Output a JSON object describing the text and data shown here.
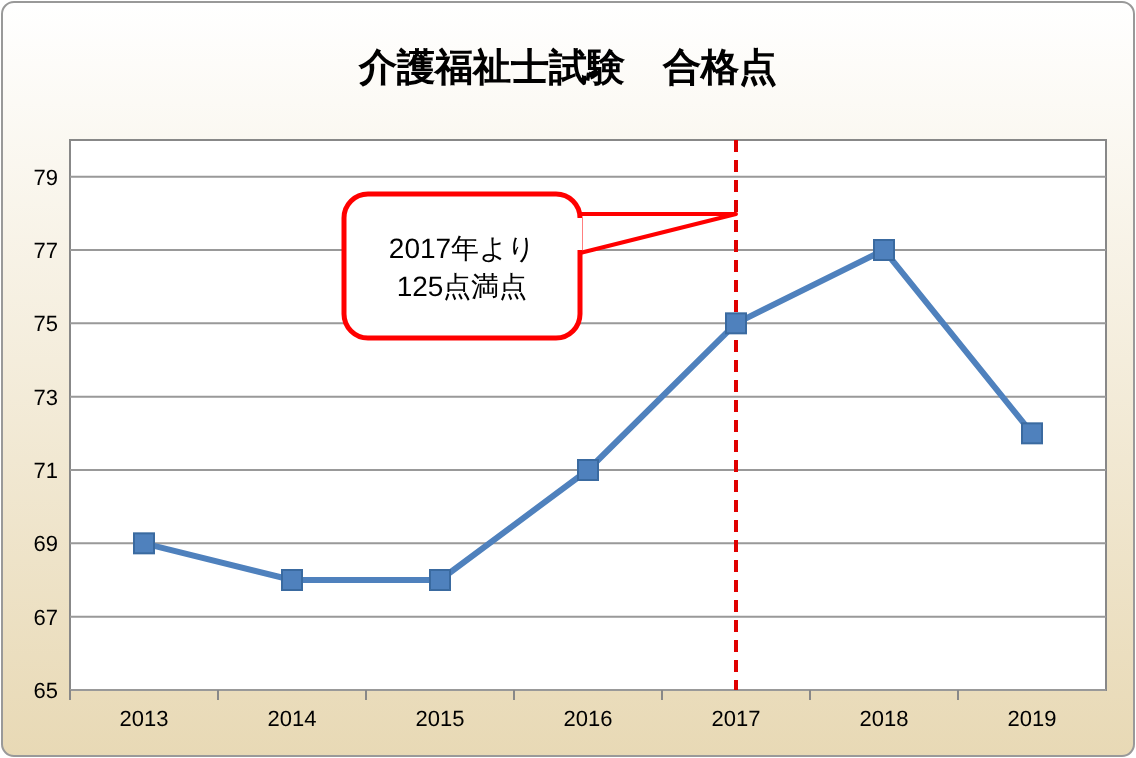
{
  "chart_data": {
    "type": "line",
    "title": "介護福祉士試験　合格点",
    "categories": [
      "2013",
      "2014",
      "2015",
      "2016",
      "2017",
      "2018",
      "2019"
    ],
    "series": [
      {
        "color": "#4f81bd",
        "values": [
          69,
          68,
          68,
          71,
          75,
          77,
          72
        ]
      }
    ],
    "ylim": [
      65,
      80
    ],
    "yticks": [
      65,
      67,
      69,
      71,
      73,
      75,
      77,
      79
    ],
    "grid": "y",
    "marker": "square",
    "line_style": "solid",
    "ref_lines": [
      {
        "axis": "x",
        "value": "2017",
        "color": "#e00000",
        "line_style": "dashed"
      }
    ],
    "annotations": [
      "2017年より\n125点満点"
    ]
  }
}
